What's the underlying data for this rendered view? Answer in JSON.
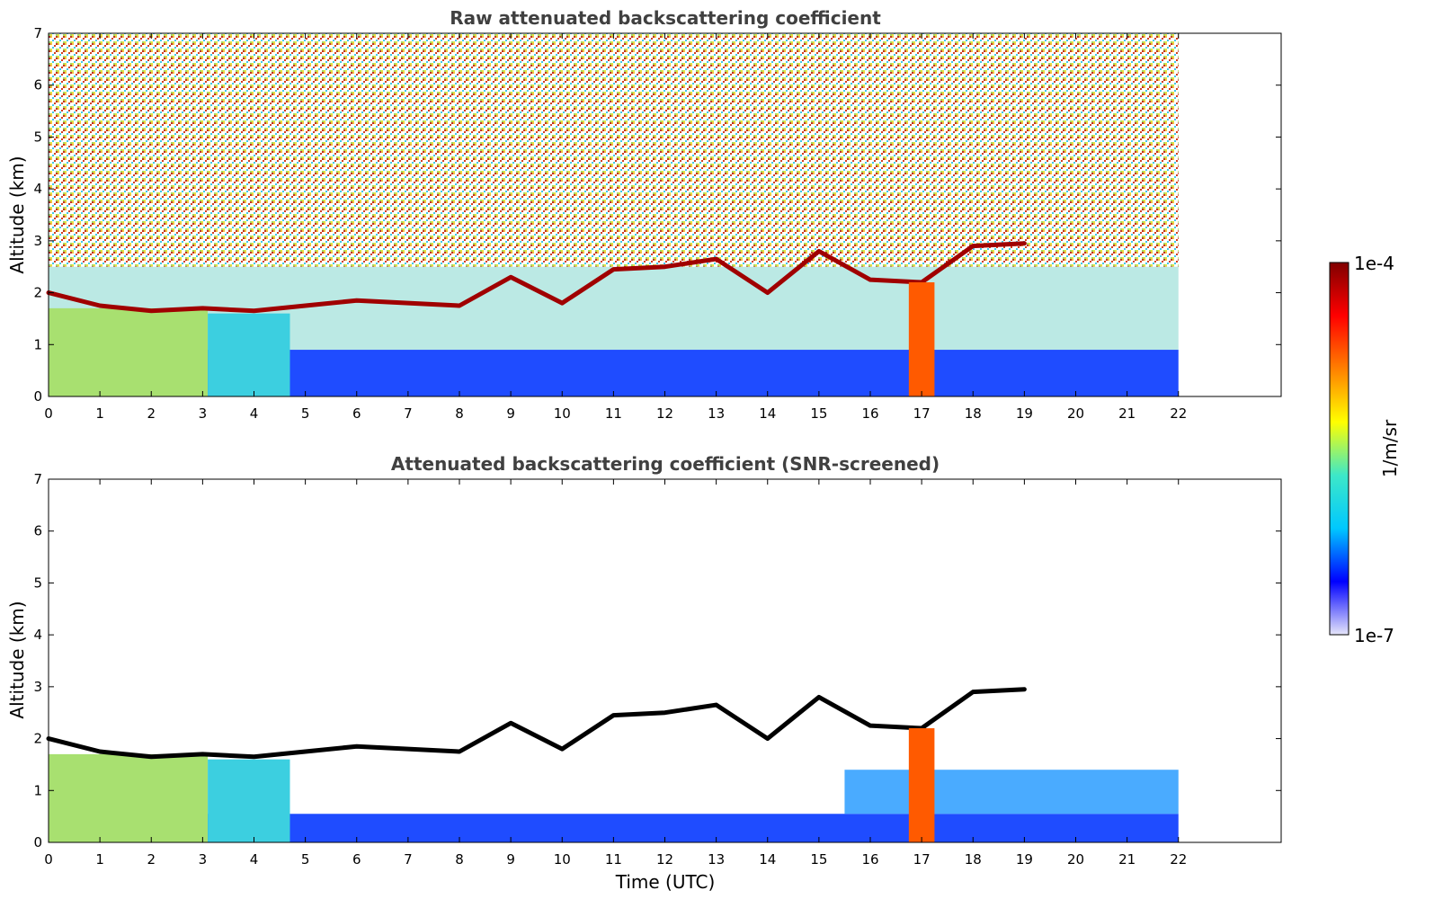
{
  "chart_data": [
    {
      "type": "heatmap",
      "title": "Raw attenuated backscattering coefficient",
      "xlabel": "",
      "ylabel": "Altitude (km)",
      "xlim": [
        0,
        24
      ],
      "ylim": [
        0,
        7
      ],
      "x_ticks": [
        "0",
        "1",
        "2",
        "3",
        "4",
        "5",
        "6",
        "7",
        "8",
        "9",
        "10",
        "11",
        "12",
        "13",
        "14",
        "15",
        "16",
        "17",
        "18",
        "19",
        "20",
        "21",
        "22"
      ],
      "y_ticks": [
        "0",
        "1",
        "2",
        "3",
        "4",
        "5",
        "6",
        "7"
      ],
      "data_extent_hours": [
        0,
        22
      ],
      "grid": false,
      "features": {
        "boundary_layer_aerosol": {
          "x": [
            0,
            3.1
          ],
          "ylim": [
            0,
            1.7
          ],
          "level": "moderate"
        },
        "cloud_layer_altitude_km": {
          "x": [
            0,
            1,
            2,
            3,
            4,
            5,
            6,
            7,
            8,
            9,
            10,
            11,
            12,
            13,
            14,
            15,
            16,
            17,
            18,
            19
          ],
          "y": [
            2.0,
            1.75,
            1.65,
            1.7,
            1.65,
            1.75,
            1.85,
            1.8,
            1.75,
            2.3,
            1.8,
            2.45,
            2.5,
            2.65,
            2.0,
            2.8,
            2.25,
            2.2,
            2.9,
            2.95
          ]
        },
        "precipitation_column": {
          "x": [
            16.75,
            17.25
          ],
          "ylim": [
            0,
            2.2
          ],
          "level": "high"
        },
        "noise_above_km": 2.5
      }
    },
    {
      "type": "heatmap",
      "title": "Attenuated backscattering coefficient (SNR-screened)",
      "xlabel": "Time (UTC)",
      "ylabel": "Altitude (km)",
      "xlim": [
        0,
        24
      ],
      "ylim": [
        0,
        7
      ],
      "x_ticks": [
        "0",
        "1",
        "2",
        "3",
        "4",
        "5",
        "6",
        "7",
        "8",
        "9",
        "10",
        "11",
        "12",
        "13",
        "14",
        "15",
        "16",
        "17",
        "18",
        "19",
        "20",
        "21",
        "22"
      ],
      "y_ticks": [
        "0",
        "1",
        "2",
        "3",
        "4",
        "5",
        "6",
        "7"
      ],
      "data_extent_hours": [
        0,
        22
      ],
      "grid": false,
      "screened": true
    }
  ],
  "colorbar": {
    "label": "1/m/sr",
    "max_label": "1e-4",
    "min_label": "1e-7",
    "colors": [
      "#e6e6fa",
      "#0000ff",
      "#00c8ff",
      "#3de8c8",
      "#ffff00",
      "#ff8000",
      "#ff0000",
      "#800000"
    ]
  }
}
